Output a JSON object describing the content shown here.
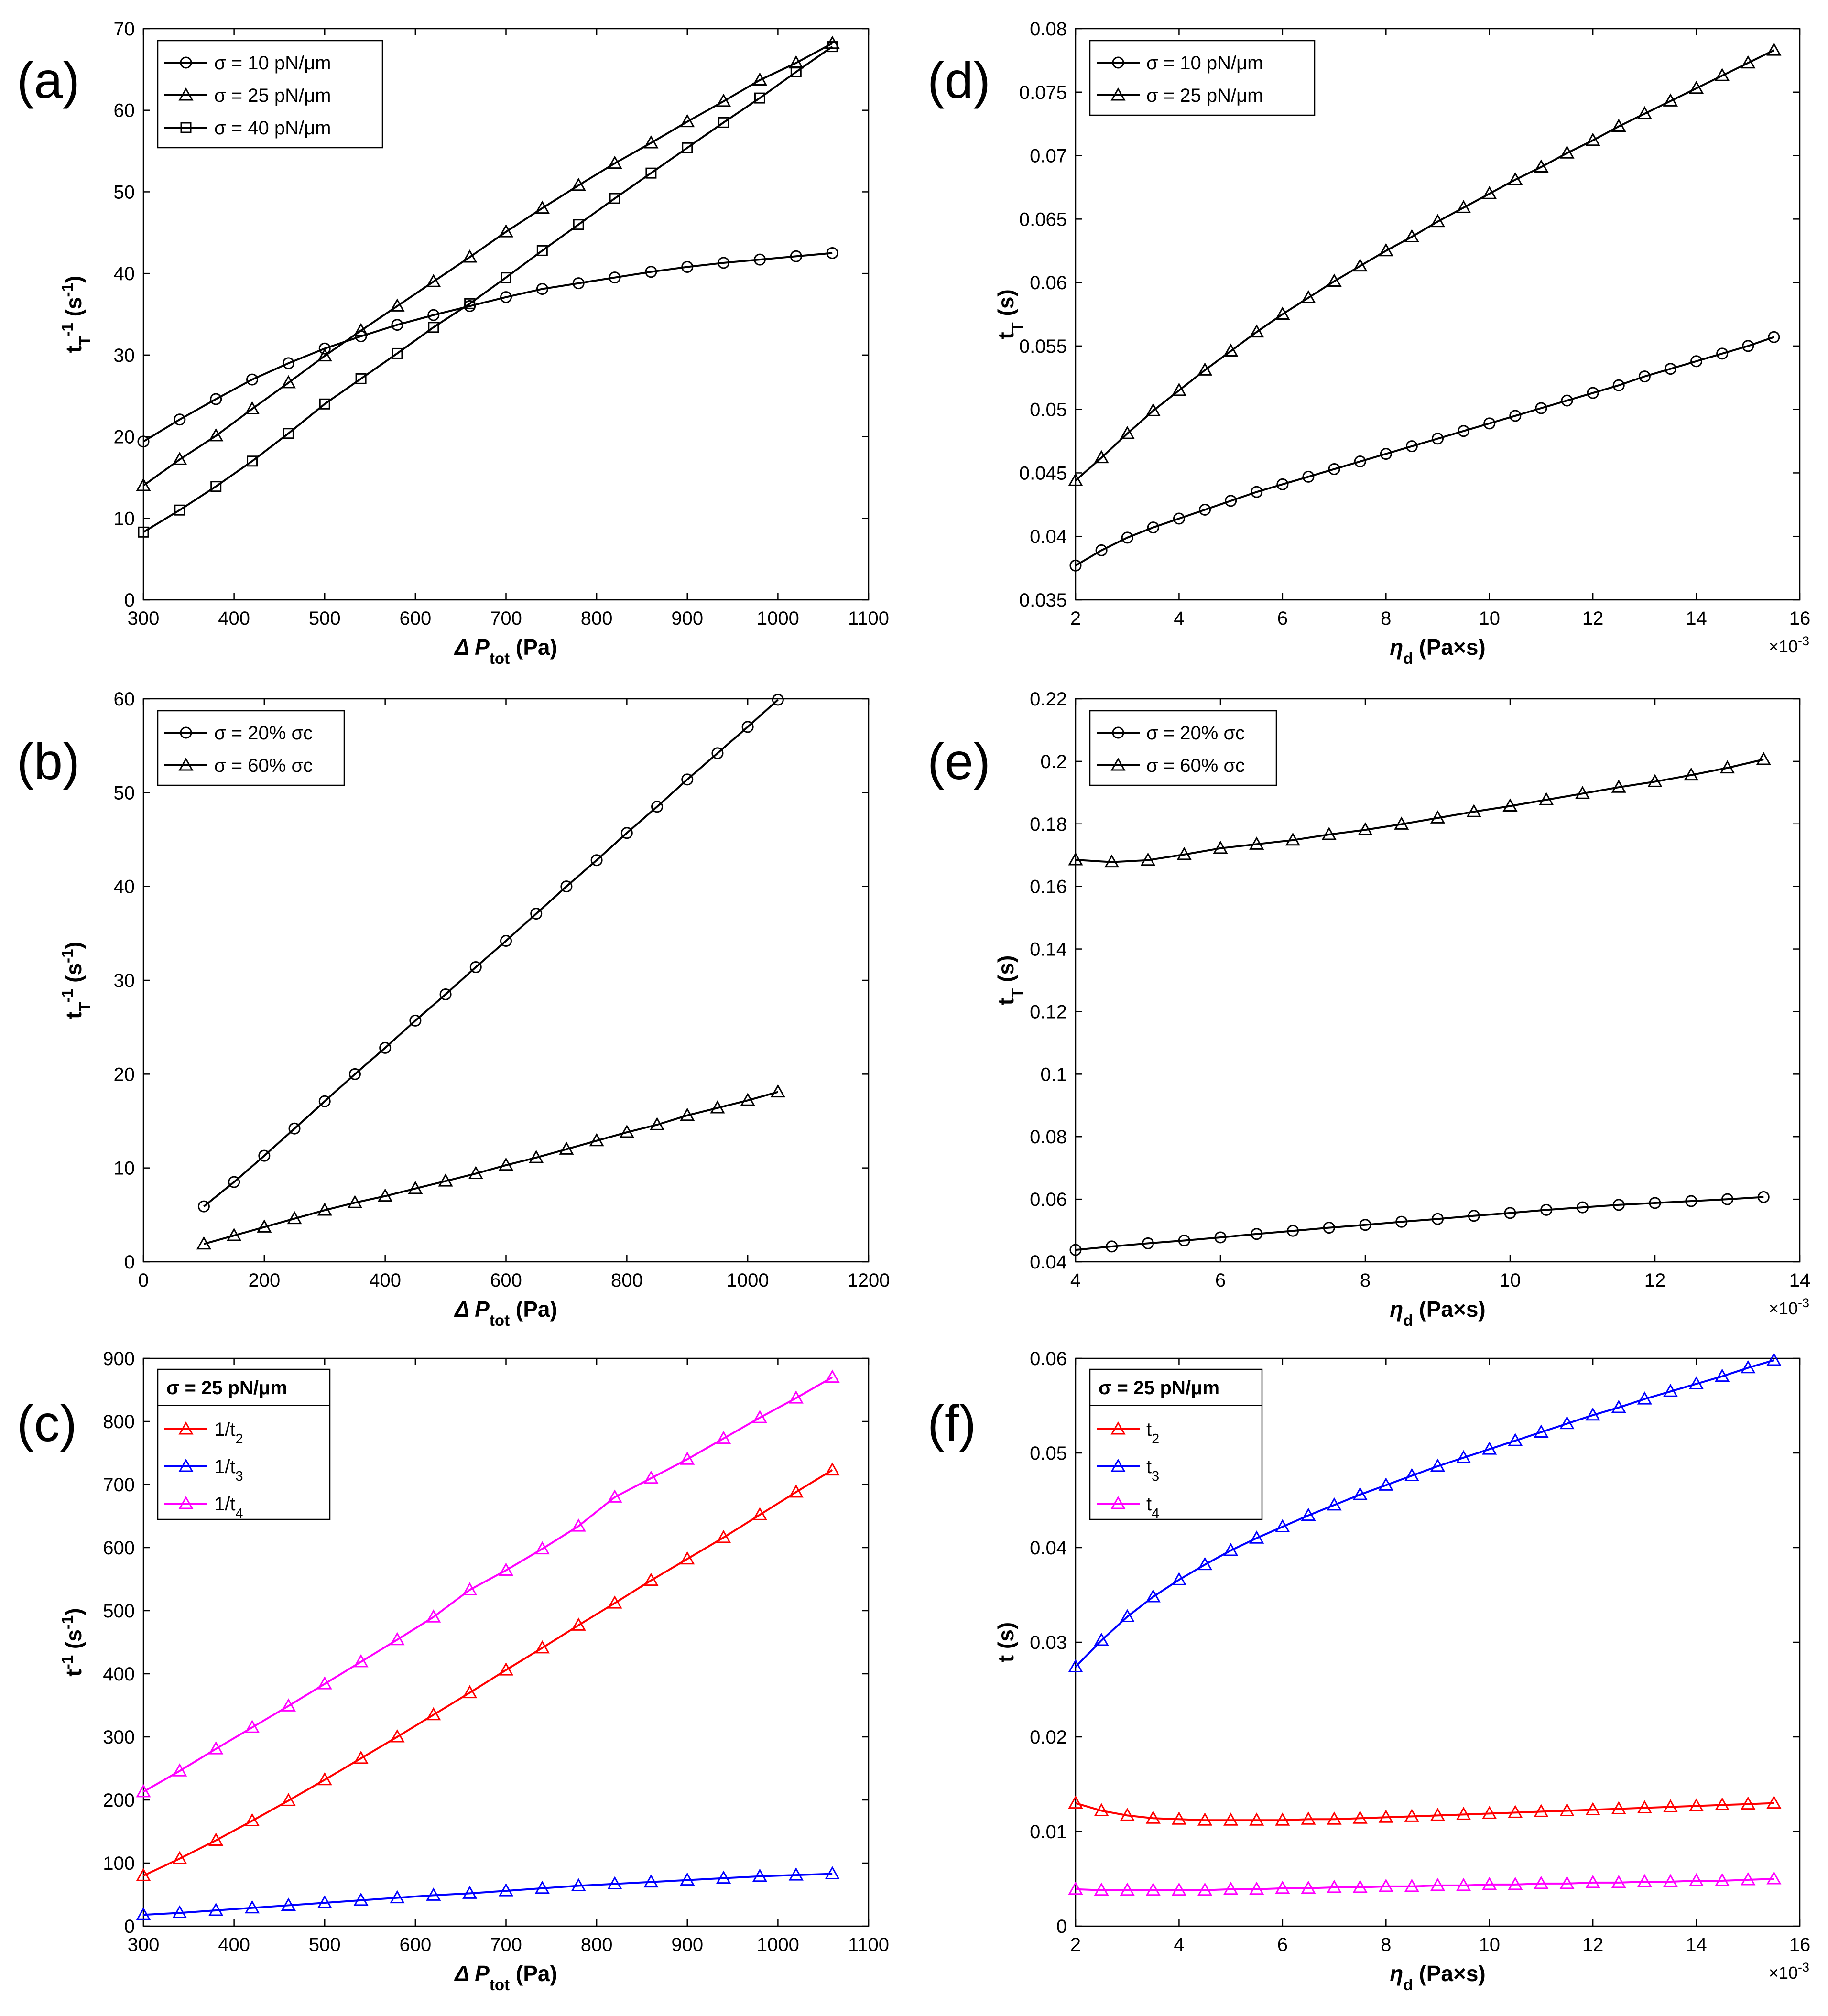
{
  "chart_data": [
    {
      "id": "a",
      "panel_label": "(a)",
      "type": "line",
      "xlabel": "Δ P_tot (Pa)",
      "ylabel": "t_T^-1 (s^-1)",
      "xlim": [
        300,
        1100
      ],
      "ylim": [
        0,
        70
      ],
      "xticks": [
        300,
        400,
        500,
        600,
        700,
        800,
        900,
        1000,
        1100
      ],
      "yticks": [
        0,
        10,
        20,
        30,
        40,
        50,
        60,
        70
      ],
      "x_exponent": "",
      "legend": {
        "position": "top-left",
        "title": ""
      },
      "series": [
        {
          "name": "σ = 10 pN/μm",
          "color": "#000000",
          "marker": "circle",
          "x": [
            300,
            340,
            380,
            420,
            460,
            500,
            540,
            580,
            620,
            660,
            700,
            740,
            780,
            820,
            860,
            900,
            940,
            980,
            1020,
            1060
          ],
          "values": [
            19.4,
            22.1,
            24.6,
            27,
            29,
            30.8,
            32.3,
            33.7,
            34.9,
            36,
            37.1,
            38.1,
            38.8,
            39.5,
            40.2,
            40.8,
            41.3,
            41.7,
            42.1,
            42.5
          ]
        },
        {
          "name": "σ = 25 pN/μm",
          "color": "#000000",
          "marker": "triangle",
          "x": [
            300,
            340,
            380,
            420,
            460,
            500,
            540,
            580,
            620,
            660,
            700,
            740,
            780,
            820,
            860,
            900,
            940,
            980,
            1020,
            1060
          ],
          "values": [
            14,
            17.2,
            20.1,
            23.4,
            26.6,
            29.9,
            33,
            36,
            39,
            42,
            45.1,
            48,
            50.8,
            53.5,
            56,
            58.6,
            61.1,
            63.7,
            65.8,
            68.2
          ]
        },
        {
          "name": "σ = 40 pN/μm",
          "color": "#000000",
          "marker": "square",
          "x": [
            300,
            340,
            380,
            420,
            460,
            500,
            540,
            580,
            620,
            660,
            700,
            740,
            780,
            820,
            860,
            900,
            940,
            980,
            1020,
            1060
          ],
          "values": [
            8.3,
            11,
            13.9,
            17,
            20.4,
            24,
            27.1,
            30.2,
            33.4,
            36.3,
            39.5,
            42.8,
            46,
            49.2,
            52.3,
            55.4,
            58.5,
            61.5,
            64.7,
            67.8
          ]
        }
      ]
    },
    {
      "id": "d",
      "panel_label": "(d)",
      "type": "line",
      "xlabel": "η_d (Pa×s)",
      "ylabel": "t_T (s)",
      "xlim": [
        2,
        16
      ],
      "ylim": [
        0.035,
        0.08
      ],
      "xticks": [
        2,
        4,
        6,
        8,
        10,
        12,
        14,
        16
      ],
      "yticks": [
        0.035,
        0.04,
        0.045,
        0.05,
        0.055,
        0.06,
        0.065,
        0.07,
        0.075,
        0.08
      ],
      "x_exponent": "×10",
      "x_exponent_power": "-3",
      "legend": {
        "position": "top-left",
        "title": ""
      },
      "series": [
        {
          "name": "σ = 10 pN/μm",
          "color": "#000000",
          "marker": "circle",
          "x": [
            2,
            2.5,
            3,
            3.5,
            4,
            4.5,
            5,
            5.5,
            6,
            6.5,
            7,
            7.5,
            8,
            8.5,
            9,
            9.5,
            10,
            10.5,
            11,
            11.5,
            12,
            12.5,
            13,
            13.5,
            14,
            14.5,
            15,
            15.5
          ],
          "values": [
            0.0377,
            0.0389,
            0.0399,
            0.0407,
            0.0414,
            0.0421,
            0.0428,
            0.0435,
            0.0441,
            0.0447,
            0.0453,
            0.0459,
            0.0465,
            0.0471,
            0.0477,
            0.0483,
            0.0489,
            0.0495,
            0.0501,
            0.0507,
            0.0513,
            0.0519,
            0.0526,
            0.0532,
            0.0538,
            0.0544,
            0.055,
            0.0557
          ]
        },
        {
          "name": "σ = 25 pN/μm",
          "color": "#000000",
          "marker": "triangle",
          "x": [
            2,
            2.5,
            3,
            3.5,
            4,
            4.5,
            5,
            5.5,
            6,
            6.5,
            7,
            7.5,
            8,
            8.5,
            9,
            9.5,
            10,
            10.5,
            11,
            11.5,
            12,
            12.5,
            13,
            13.5,
            14,
            14.5,
            15,
            15.5
          ],
          "values": [
            0.0444,
            0.0462,
            0.0481,
            0.0499,
            0.0515,
            0.0531,
            0.0546,
            0.0561,
            0.0575,
            0.0588,
            0.0601,
            0.0613,
            0.0625,
            0.0636,
            0.0648,
            0.0659,
            0.067,
            0.0681,
            0.0691,
            0.0702,
            0.0712,
            0.0723,
            0.0733,
            0.0743,
            0.0753,
            0.0763,
            0.0773,
            0.0783
          ]
        }
      ]
    },
    {
      "id": "b",
      "panel_label": "(b)",
      "type": "line",
      "xlabel": "Δ P_tot (Pa)",
      "ylabel": "t_T^-1 (s^-1)",
      "xlim": [
        0,
        1200
      ],
      "ylim": [
        0,
        60
      ],
      "xticks": [
        0,
        200,
        400,
        600,
        800,
        1000,
        1200
      ],
      "yticks": [
        0,
        10,
        20,
        30,
        40,
        50,
        60
      ],
      "x_exponent": "",
      "legend": {
        "position": "top-left",
        "title": ""
      },
      "series": [
        {
          "name": "σ = 20% σc",
          "color": "#000000",
          "marker": "circle",
          "x": [
            100,
            150,
            200,
            250,
            300,
            350,
            400,
            450,
            500,
            550,
            600,
            650,
            700,
            750,
            800,
            850,
            900,
            950,
            1000,
            1050
          ],
          "values": [
            5.9,
            8.5,
            11.3,
            14.2,
            17.1,
            20,
            22.8,
            25.7,
            28.5,
            31.4,
            34.2,
            37.1,
            40,
            42.8,
            45.7,
            48.5,
            51.4,
            54.2,
            57,
            59.9
          ]
        },
        {
          "name": "σ = 60% σc",
          "color": "#000000",
          "marker": "triangle",
          "x": [
            100,
            150,
            200,
            250,
            300,
            350,
            400,
            450,
            500,
            550,
            600,
            650,
            700,
            750,
            800,
            850,
            900,
            950,
            1000,
            1050
          ],
          "values": [
            1.9,
            2.8,
            3.7,
            4.6,
            5.5,
            6.3,
            7,
            7.8,
            8.6,
            9.4,
            10.3,
            11.1,
            12,
            12.9,
            13.8,
            14.6,
            15.6,
            16.4,
            17.2,
            18.1
          ]
        }
      ]
    },
    {
      "id": "e",
      "panel_label": "(e)",
      "type": "line",
      "xlabel": "η_d (Pa×s)",
      "ylabel": "t_T (s)",
      "xlim": [
        4,
        14
      ],
      "ylim": [
        0.04,
        0.22
      ],
      "xticks": [
        4,
        6,
        8,
        10,
        12,
        14
      ],
      "yticks": [
        0.04,
        0.06,
        0.08,
        0.1,
        0.12,
        0.14,
        0.16,
        0.18,
        0.2,
        0.22
      ],
      "x_exponent": "×10",
      "x_exponent_power": "-3",
      "legend": {
        "position": "top-left",
        "title": ""
      },
      "series": [
        {
          "name": "σ = 20% σc",
          "color": "#000000",
          "marker": "circle",
          "x": [
            4,
            4.5,
            5,
            5.5,
            6,
            6.5,
            7,
            7.5,
            8,
            8.5,
            9,
            9.5,
            10,
            10.5,
            11,
            11.5,
            12,
            12.5,
            13,
            13.5
          ],
          "values": [
            0.0438,
            0.0449,
            0.0459,
            0.0468,
            0.0478,
            0.0489,
            0.0499,
            0.0509,
            0.0518,
            0.0528,
            0.0537,
            0.0547,
            0.0556,
            0.0566,
            0.0574,
            0.0582,
            0.0588,
            0.0594,
            0.06,
            0.0607
          ]
        },
        {
          "name": "σ = 60% σc",
          "color": "#000000",
          "marker": "triangle",
          "x": [
            4,
            4.5,
            5,
            5.5,
            6,
            6.5,
            7,
            7.5,
            8,
            8.5,
            9,
            9.5,
            10,
            10.5,
            11,
            11.5,
            12,
            12.5,
            13,
            13.5
          ],
          "values": [
            0.1685,
            0.1678,
            0.1684,
            0.1702,
            0.1722,
            0.1735,
            0.1748,
            0.1766,
            0.1781,
            0.1799,
            0.1819,
            0.1839,
            0.1857,
            0.1877,
            0.1897,
            0.1917,
            0.1935,
            0.1956,
            0.1979,
            0.2006
          ]
        }
      ]
    },
    {
      "id": "c",
      "panel_label": "(c)",
      "type": "line",
      "xlabel": "Δ P_tot (Pa)",
      "ylabel": "t^-1 (s^-1)",
      "xlim": [
        300,
        1100
      ],
      "ylim": [
        0,
        900
      ],
      "xticks": [
        300,
        400,
        500,
        600,
        700,
        800,
        900,
        1000,
        1100
      ],
      "yticks": [
        0,
        100,
        200,
        300,
        400,
        500,
        600,
        700,
        800,
        900
      ],
      "x_exponent": "",
      "legend": {
        "position": "top-left",
        "title": "σ = 25 pN/μm"
      },
      "series": [
        {
          "name": "1/t2",
          "color": "#ff0000",
          "marker": "triangle",
          "x": [
            300,
            340,
            380,
            420,
            460,
            500,
            540,
            580,
            620,
            660,
            700,
            740,
            780,
            820,
            860,
            900,
            940,
            980,
            1020,
            1060
          ],
          "values": [
            80,
            107,
            136,
            167,
            199,
            232,
            266,
            300,
            335,
            370,
            406,
            441,
            477,
            512,
            548,
            582,
            616,
            652,
            688,
            723
          ]
        },
        {
          "name": "1/t3",
          "color": "#0000ff",
          "marker": "triangle",
          "x": [
            300,
            340,
            380,
            420,
            460,
            500,
            540,
            580,
            620,
            660,
            700,
            740,
            780,
            820,
            860,
            900,
            940,
            980,
            1020,
            1060
          ],
          "values": [
            18,
            21,
            25,
            29,
            33,
            37,
            41,
            45,
            49,
            52,
            56,
            60,
            64,
            67,
            70,
            73,
            76,
            79,
            81,
            83
          ]
        },
        {
          "name": "1/t4",
          "color": "#ff00ff",
          "marker": "triangle",
          "x": [
            300,
            340,
            380,
            420,
            460,
            500,
            540,
            580,
            620,
            660,
            700,
            740,
            780,
            820,
            860,
            900,
            940,
            980,
            1020,
            1060
          ],
          "values": [
            213,
            246,
            281,
            315,
            349,
            384,
            419,
            454,
            490,
            533,
            564,
            598,
            634,
            680,
            710,
            740,
            773,
            806,
            837,
            870
          ]
        }
      ]
    },
    {
      "id": "f",
      "panel_label": "(f)",
      "type": "line",
      "xlabel": "η_d (Pa×s)",
      "ylabel": "t (s)",
      "xlim": [
        2,
        16
      ],
      "ylim": [
        0,
        0.06
      ],
      "xticks": [
        2,
        4,
        6,
        8,
        10,
        12,
        14,
        16
      ],
      "yticks": [
        0,
        0.01,
        0.02,
        0.03,
        0.04,
        0.05,
        0.06
      ],
      "x_exponent": "×10",
      "x_exponent_power": "-3",
      "legend": {
        "position": "top-left",
        "title": "σ = 25 pN/μm"
      },
      "series": [
        {
          "name": "t2",
          "color": "#ff0000",
          "marker": "triangle",
          "x": [
            2,
            2.5,
            3,
            3.5,
            4,
            4.5,
            5,
            5.5,
            6,
            6.5,
            7,
            7.5,
            8,
            8.5,
            9,
            9.5,
            10,
            10.5,
            11,
            11.5,
            12,
            12.5,
            13,
            13.5,
            14,
            14.5,
            15,
            15.5
          ],
          "values": [
            0.013,
            0.0122,
            0.0117,
            0.0114,
            0.0113,
            0.0112,
            0.0112,
            0.0112,
            0.0112,
            0.0113,
            0.0113,
            0.0114,
            0.0115,
            0.0116,
            0.0117,
            0.0118,
            0.0119,
            0.012,
            0.0121,
            0.0122,
            0.0123,
            0.0124,
            0.0125,
            0.0126,
            0.0127,
            0.0128,
            0.0129,
            0.013
          ]
        },
        {
          "name": "t3",
          "color": "#0000ff",
          "marker": "triangle",
          "x": [
            2,
            2.5,
            3,
            3.5,
            4,
            4.5,
            5,
            5.5,
            6,
            6.5,
            7,
            7.5,
            8,
            8.5,
            9,
            9.5,
            10,
            10.5,
            11,
            11.5,
            12,
            12.5,
            13,
            13.5,
            14,
            14.5,
            15,
            15.5
          ],
          "values": [
            0.0274,
            0.0302,
            0.0327,
            0.0348,
            0.0366,
            0.0382,
            0.0397,
            0.041,
            0.0422,
            0.0434,
            0.0445,
            0.0456,
            0.0466,
            0.0476,
            0.0486,
            0.0495,
            0.0504,
            0.0513,
            0.0522,
            0.0531,
            0.054,
            0.0548,
            0.0557,
            0.0565,
            0.0573,
            0.0581,
            0.059,
            0.0598
          ]
        },
        {
          "name": "t4",
          "color": "#ff00ff",
          "marker": "triangle",
          "x": [
            2,
            2.5,
            3,
            3.5,
            4,
            4.5,
            5,
            5.5,
            6,
            6.5,
            7,
            7.5,
            8,
            8.5,
            9,
            9.5,
            10,
            10.5,
            11,
            11.5,
            12,
            12.5,
            13,
            13.5,
            14,
            14.5,
            15,
            15.5
          ],
          "values": [
            0.0039,
            0.0038,
            0.0038,
            0.0038,
            0.0038,
            0.0038,
            0.0039,
            0.0039,
            0.004,
            0.004,
            0.0041,
            0.0041,
            0.0042,
            0.0042,
            0.0043,
            0.0043,
            0.0044,
            0.0044,
            0.0045,
            0.0045,
            0.0046,
            0.0046,
            0.0047,
            0.0047,
            0.0048,
            0.0048,
            0.0049,
            0.005
          ]
        }
      ]
    }
  ]
}
